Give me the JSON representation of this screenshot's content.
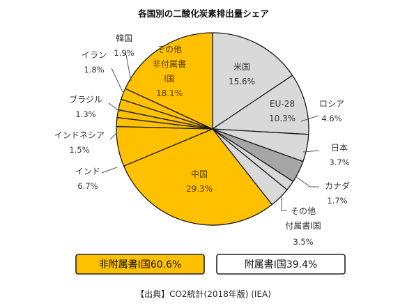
{
  "chart_data": {
    "type": "pie",
    "title": "各国別の二酸化炭素排出量シェア",
    "slices": [
      {
        "key": "us",
        "lines": [
          "米国"
        ],
        "value": 15.6,
        "value_label": "15.6%",
        "color": "#d9d9d9",
        "group": "annex1"
      },
      {
        "key": "eu28",
        "lines": [
          "EU-28"
        ],
        "value": 10.3,
        "value_label": "10.3%",
        "color": "#d9d9d9",
        "group": "annex1"
      },
      {
        "key": "russia",
        "lines": [
          "ロシア"
        ],
        "value": 4.6,
        "value_label": "4.6%",
        "color": "#d9d9d9",
        "group": "annex1"
      },
      {
        "key": "japan",
        "lines": [
          "日本"
        ],
        "value": 3.7,
        "value_label": "3.7%",
        "color": "#a6a6a6",
        "group": "annex1"
      },
      {
        "key": "canada",
        "lines": [
          "カナダ"
        ],
        "value": 1.7,
        "value_label": "1.7%",
        "color": "#d9d9d9",
        "group": "annex1"
      },
      {
        "key": "other_annex1",
        "lines": [
          "その他",
          "付属書Ⅰ国"
        ],
        "value": 3.5,
        "value_label": "3.5%",
        "color": "#d9d9d9",
        "group": "annex1"
      },
      {
        "key": "china",
        "lines": [
          "中国"
        ],
        "value": 29.3,
        "value_label": "29.3%",
        "color": "#ffc000",
        "group": "non_annex1"
      },
      {
        "key": "india",
        "lines": [
          "インド"
        ],
        "value": 6.7,
        "value_label": "6.7%",
        "color": "#ffc000",
        "group": "non_annex1"
      },
      {
        "key": "indonesia",
        "lines": [
          "インドネシア"
        ],
        "value": 1.5,
        "value_label": "1.5%",
        "color": "#ffc000",
        "group": "non_annex1"
      },
      {
        "key": "brazil",
        "lines": [
          "ブラジル"
        ],
        "value": 1.3,
        "value_label": "1.3%",
        "color": "#ffc000",
        "group": "non_annex1"
      },
      {
        "key": "iran",
        "lines": [
          "イラン"
        ],
        "value": 1.8,
        "value_label": "1.8%",
        "color": "#ffc000",
        "group": "non_annex1"
      },
      {
        "key": "korea",
        "lines": [
          "韓国"
        ],
        "value": 1.9,
        "value_label": "1.9%",
        "color": "#ffc000",
        "group": "non_annex1"
      },
      {
        "key": "other_non_annex1",
        "lines": [
          "その他",
          "非付属書",
          "Ⅰ国"
        ],
        "value": 18.1,
        "value_label": "18.1%",
        "color": "#ffc000",
        "group": "non_annex1"
      }
    ],
    "totals": [
      {
        "key": "non_annex1",
        "label": "非附属書Ⅰ国60.6%",
        "color": "#ffc000"
      },
      {
        "key": "annex1",
        "label": "附属書Ⅰ国39.4%",
        "color": "#ffffff"
      }
    ],
    "source": "【出典】CO2統計(2018年版) (IEA)"
  }
}
